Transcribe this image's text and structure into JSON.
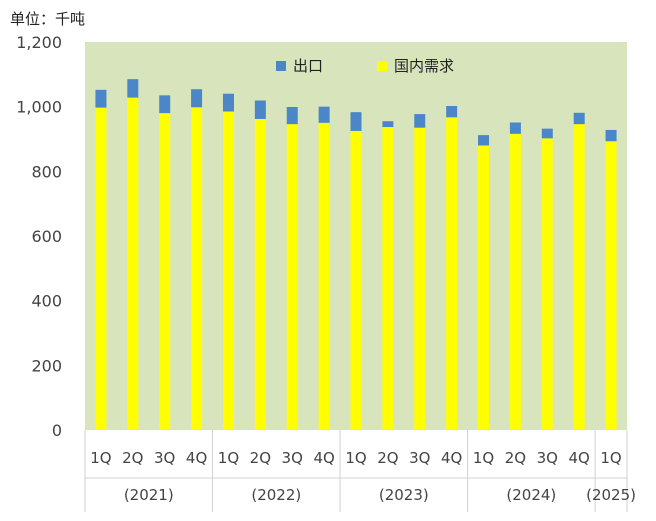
{
  "chart_data": {
    "type": "bar",
    "stacked": true,
    "unit_label": "单位：千吨",
    "ylim": [
      0,
      1200
    ],
    "yticks": [
      0,
      200,
      400,
      600,
      800,
      1000,
      1200
    ],
    "ytick_labels": [
      "0",
      "200",
      "400",
      "600",
      "800",
      "1,000",
      "1,200"
    ],
    "categories": [
      "1Q",
      "2Q",
      "3Q",
      "4Q",
      "1Q",
      "2Q",
      "3Q",
      "4Q",
      "1Q",
      "2Q",
      "3Q",
      "4Q",
      "1Q",
      "2Q",
      "3Q",
      "4Q",
      "1Q"
    ],
    "groups": [
      {
        "label": "(2021)",
        "start": 0,
        "count": 4
      },
      {
        "label": "(2022)",
        "start": 4,
        "count": 4
      },
      {
        "label": "(2023)",
        "start": 8,
        "count": 4
      },
      {
        "label": "(2024)",
        "start": 12,
        "count": 4
      },
      {
        "label": "(2025)",
        "start": 16,
        "count": 1
      }
    ],
    "series": [
      {
        "name": "国内需求",
        "color": "#ffff00",
        "values": [
          997,
          1028,
          980,
          998,
          985,
          962,
          946,
          950,
          925,
          937,
          935,
          967,
          880,
          916,
          902,
          946,
          893
        ]
      },
      {
        "name": "出口",
        "color": "#4a86c8",
        "values": [
          55,
          57,
          55,
          56,
          55,
          57,
          53,
          50,
          58,
          18,
          42,
          35,
          32,
          35,
          30,
          35,
          35
        ]
      }
    ],
    "legend": [
      {
        "name": "出口",
        "color": "#4a86c8"
      },
      {
        "name": "国内需求",
        "color": "#ffff00"
      }
    ],
    "legend_position": "top-center",
    "plot_background": "#d8e4bc",
    "grid": false
  }
}
